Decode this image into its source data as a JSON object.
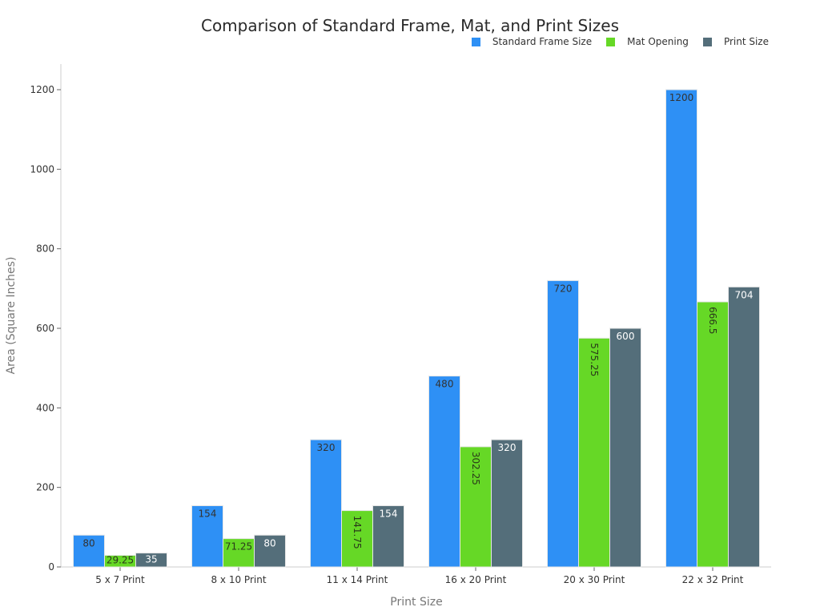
{
  "chart_data": {
    "type": "bar",
    "title": "Comparison of Standard Frame, Mat, and Print Sizes",
    "xlabel": "Print Size",
    "ylabel": "Area (Square Inches)",
    "categories": [
      "5 x 7 Print",
      "8 x 10 Print",
      "11 x 14 Print",
      "16 x 20 Print",
      "20 x 30 Print",
      "22 x 32 Print"
    ],
    "series": [
      {
        "name": "Standard Frame Size",
        "color": "#2e90f5",
        "label_color": "#333333",
        "values": [
          80,
          154,
          320,
          480,
          720,
          1200
        ],
        "labels": [
          "80",
          "154",
          "320",
          "480",
          "720",
          "1200"
        ]
      },
      {
        "name": "Mat Opening",
        "color": "#66d826",
        "label_color": "#2a3a1a",
        "values": [
          29.25,
          71.25,
          141.75,
          302.25,
          575.25,
          666.5
        ],
        "labels": [
          "29.25",
          "71.25",
          "141.75",
          "302.25",
          "575.25",
          "666.5"
        ]
      },
      {
        "name": "Print Size",
        "color": "#546e7a",
        "label_color": "#ffffff",
        "values": [
          35,
          80,
          154,
          320,
          600,
          704
        ],
        "labels": [
          "35",
          "80",
          "154",
          "320",
          "600",
          "704"
        ]
      }
    ],
    "yticks": [
      0,
      200,
      400,
      600,
      800,
      1000,
      1200
    ],
    "ylim": [
      0,
      1260
    ],
    "grid": false,
    "legend_position": "top-right"
  }
}
